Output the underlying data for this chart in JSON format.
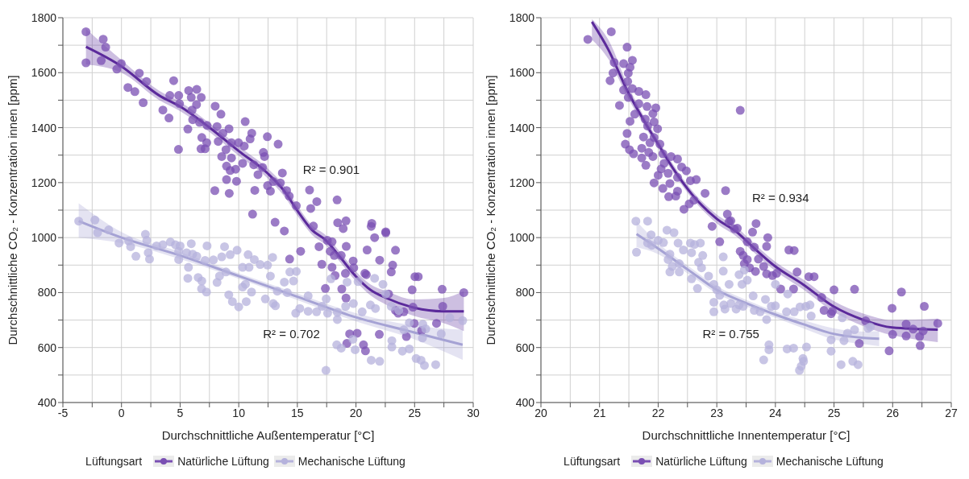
{
  "chart_data": [
    {
      "type": "scatter",
      "xlabel": "Durchschnittliche Außentemperatur [°C]",
      "ylabel": "Durchschnittliche CO₂ - Konzentration innen [ppm]",
      "legend_title": "Lüftungsart",
      "legend": "bottom",
      "grid": true,
      "xlim": [
        -5,
        30
      ],
      "ylim": [
        400,
        1800
      ],
      "xticks": [
        -5,
        {
          "value": -2.5,
          "label": null
        },
        0,
        {
          "value": 2.5,
          "label": null
        },
        5,
        {
          "value": 7.5,
          "label": null
        },
        10,
        {
          "value": 12.5,
          "label": null
        },
        15,
        {
          "value": 17.5,
          "label": null
        },
        20,
        {
          "value": 22.5,
          "label": null
        },
        25,
        {
          "value": 27.5,
          "label": null
        },
        30
      ],
      "yticks": [
        400,
        {
          "value": 500,
          "label": null
        },
        600,
        {
          "value": 700,
          "label": null
        },
        800,
        {
          "value": 900,
          "label": null
        },
        1000,
        {
          "value": 1100,
          "label": null
        },
        1200,
        {
          "value": 1300,
          "label": null
        },
        1400,
        {
          "value": 1500,
          "label": null
        },
        1600,
        {
          "value": 1700,
          "label": null
        },
        1800
      ],
      "annotations": [
        "R² = 0.901",
        "R² = 0.702"
      ],
      "series": [
        {
          "name": "Natürliche Lüftung",
          "marker": "circle",
          "color": "#7a4fb3",
          "x": [
            -3.03,
            -3.03,
            -1.56,
            -1.35,
            -1.73,
            -0.4,
            -0.02,
            1.52,
            2.13,
            0.55,
            1.14,
            1.85,
            4.45,
            3.53,
            4.05,
            4.12,
            4.88,
            5.73,
            6.42,
            6.8,
            5.95,
            4.95,
            6.02,
            6.4,
            5.66,
            6.07,
            6.66,
            7.3,
            7.99,
            8.48,
            8.15,
            4.86,
            6.85,
            7.27,
            6.78,
            7.13,
            9.17,
            8.65,
            10.55,
            11.11,
            10.97,
            12.44,
            13.36,
            8.25,
            9.38,
            9.98,
            10.47,
            8.91,
            8.55,
            9.38,
            12.1,
            12.2,
            8.96,
            9.27,
            9.74,
            10.33,
            11.28,
            12.04,
            8.96,
            9.81,
            11.64,
            13.72,
            12.94,
            13.55,
            7.96,
            9.19,
            11.37,
            12.46,
            12.7,
            14.08,
            14.31,
            14.91,
            16.04,
            16.14,
            16.66,
            18.39,
            11.18,
            13.1,
            13.89,
            16.37,
            18.44,
            19.15,
            18.91,
            21.35,
            21.3,
            22.54,
            14.34,
            15.28,
            16.85,
            17.09,
            17.39,
            17.56,
            17.96,
            17.8,
            18.15,
            18.74,
            17.96,
            18.22,
            18.79,
            19.17,
            19.15,
            19.1,
            19.76,
            19.81,
            20.76,
            20.95,
            20.88,
            21.59,
            22.54,
            22.02,
            23.37,
            23.13,
            23.01,
            22.78,
            23.37,
            23.6,
            24.08,
            24.79,
            25.03,
            25.31,
            24.86,
            24.97,
            24.3,
            25.6,
            26.87,
            27.35,
            27.4,
            29.2,
            19.46,
            20.1,
            21.99,
            19.22,
            20.64,
            20.81
          ],
          "values": [
            1749,
            1636,
            1722,
            1693,
            1644,
            1613,
            1633,
            1598,
            1568,
            1546,
            1531,
            1491,
            1571,
            1464,
            1435,
            1517,
            1517,
            1535,
            1539,
            1510,
            1510,
            1487,
            1464,
            1484,
            1395,
            1429,
            1419,
            1408,
            1478,
            1449,
            1404,
            1321,
            1364,
            1345,
            1323,
            1323,
            1396,
            1380,
            1422,
            1380,
            1359,
            1367,
            1340,
            1350,
            1345,
            1345,
            1333,
            1320,
            1295,
            1290,
            1310,
            1295,
            1260,
            1244,
            1249,
            1270,
            1265,
            1255,
            1211,
            1205,
            1229,
            1235,
            1204,
            1199,
            1171,
            1161,
            1172,
            1189,
            1169,
            1171,
            1151,
            1116,
            1173,
            1106,
            1131,
            1137,
            1085,
            1056,
            1024,
            1042,
            1054,
            1061,
            1033,
            1052,
            1041,
            1021,
            922,
            950,
            967,
            903,
            815,
            990,
            985,
            950,
            935,
            935,
            892,
            862,
            813,
            968,
            780,
            870,
            915,
            890,
            870,
            955,
            865,
            1000,
            1017,
            918,
            954,
            900,
            875,
            795,
            735,
            725,
            730,
            810,
            858,
            858,
            747,
            688,
            640,
            662,
            688,
            812,
            750,
            800,
            650,
            652,
            648,
            615,
            610,
            588
          ]
        },
        {
          "name": "Mechanische Lüftung",
          "marker": "circle",
          "color": "#b5b2dc",
          "x": [
            -3.65,
            -2.27,
            -2.04,
            -1.09,
            -0.21,
            0.62,
            0.78,
            1.23,
            2.04,
            2.16,
            2.28,
            2.39,
            2.99,
            3.53,
            4.17,
            4.6,
            5,
            4.88,
            4.88,
            5.71,
            5.95,
            5.55,
            6.07,
            6.42,
            5.66,
            6.54,
            6.85,
            6.83,
            7.25,
            7.3,
            7.13,
            7.84,
            8.15,
            8.36,
            8.79,
            8.55,
            9.27,
            8.91,
            9.15,
            9.46,
            10,
            9.86,
            10.33,
            10.8,
            10.88,
            11.33,
            10.64,
            11.09,
            10.57,
            10.33,
            11.83,
            12.46,
            12.89,
            12.7,
            12.27,
            12.94,
            13.13,
            13.29,
            13.89,
            14.36,
            14.91,
            14.67,
            14.13,
            14.86,
            15.21,
            15.92,
            15.92,
            16.64,
            17.11,
            17.46,
            17.58,
            18.41,
            18.41,
            17.87,
            19.24,
            19.12,
            19.78,
            20.18,
            20.53,
            21.23,
            21.66,
            21.59,
            22.3,
            22.54,
            23.01,
            23.65,
            24.08,
            24.55,
            25.7,
            25.95,
            25.67,
            28,
            29.1,
            27.27,
            23.06,
            18.36,
            18.74,
            19.74,
            19.93,
            23.06,
            23.96,
            24.55,
            21.3,
            22.02,
            25.13,
            25.55,
            25.84,
            26.8,
            17.44
          ],
          "values": [
            1060,
            1064,
            1018,
            1028,
            980,
            988,
            967,
            932,
            1012,
            990,
            945,
            922,
            970,
            974,
            984,
            974,
            970,
            950,
            920,
            892,
            978,
            945,
            940,
            932,
            852,
            855,
            842,
            814,
            802,
            970,
            917,
            919,
            837,
            860,
            967,
            930,
            938,
            875,
            792,
            767,
            748,
            954,
            892,
            938,
            892,
            920,
            767,
            802,
            830,
            820,
            902,
            900,
            928,
            860,
            777,
            760,
            752,
            805,
            838,
            875,
            877,
            842,
            800,
            725,
            742,
            732,
            788,
            730,
            750,
            777,
            725,
            702,
            728,
            850,
            838,
            750,
            760,
            840,
            730,
            755,
            742,
            852,
            830,
            795,
            750,
            735,
            665,
            690,
            685,
            668,
            635,
            708,
            698,
            650,
            625,
            610,
            598,
            630,
            592,
            602,
            587,
            595,
            554,
            550,
            560,
            554,
            535,
            538,
            517
          ]
        },
        {
          "type": "line",
          "marker": "none",
          "color": "#5b2a9b",
          "x": [
            -3.03,
            0,
            3.22,
            5,
            7.49,
            10,
            12.46,
            13.89,
            15,
            16.26,
            17.44,
            18.63,
            19.97,
            21.23,
            22.6,
            24.97,
            27.4,
            29.2
          ],
          "values": [
            1694,
            1623,
            1517,
            1477,
            1401,
            1315,
            1234,
            1169,
            1098,
            1027,
            990,
            930,
            860,
            810,
            780,
            745,
            732,
            732
          ],
          "lower": [
            1630,
            1600,
            1500,
            1460,
            1385,
            1298,
            1216,
            1150,
            1080,
            1010,
            972,
            912,
            842,
            790,
            755,
            715,
            690,
            660
          ],
          "upper": [
            1760,
            1646,
            1534,
            1494,
            1417,
            1332,
            1252,
            1188,
            1116,
            1044,
            1008,
            948,
            878,
            830,
            805,
            775,
            780,
            805
          ]
        },
        {
          "type": "line",
          "marker": "none",
          "color": "#a5a2d4",
          "x": [
            -3.65,
            0,
            5,
            10,
            15,
            20,
            24.97,
            29.1
          ],
          "values": [
            1060,
            1000,
            935,
            860,
            785,
            710,
            655,
            610
          ],
          "lower": [
            1000,
            980,
            922,
            850,
            773,
            695,
            630,
            555
          ],
          "upper": [
            1125,
            1020,
            948,
            870,
            797,
            725,
            680,
            665
          ]
        }
      ]
    },
    {
      "type": "scatter",
      "xlabel": "Durchschnittliche Innentemperatur [°C]",
      "ylabel": "Durchschnittliche CO₂ - Konzentration innen [ppm]",
      "legend_title": "Lüftungsart",
      "legend": "bottom",
      "grid": true,
      "xlim": [
        20,
        27
      ],
      "ylim": [
        400,
        1800
      ],
      "xticks": [
        20,
        {
          "value": 20.5,
          "label": null
        },
        21,
        {
          "value": 21.5,
          "label": null
        },
        22,
        {
          "value": 22.5,
          "label": null
        },
        23,
        {
          "value": 23.5,
          "label": null
        },
        24,
        {
          "value": 24.5,
          "label": null
        },
        25,
        {
          "value": 25.5,
          "label": null
        },
        26,
        {
          "value": 26.5,
          "label": null
        },
        27
      ],
      "yticks": [
        400,
        {
          "value": 500,
          "label": null
        },
        600,
        {
          "value": 700,
          "label": null
        },
        800,
        {
          "value": 900,
          "label": null
        },
        1000,
        {
          "value": 1100,
          "label": null
        },
        1200,
        {
          "value": 1300,
          "label": null
        },
        1400,
        {
          "value": 1500,
          "label": null
        },
        1600,
        {
          "value": 1700,
          "label": null
        },
        1800
      ],
      "annotations": [
        "R² = 0.934",
        "R² = 0.755"
      ],
      "series": [
        {
          "name": "Natürliche Lüftung",
          "marker": "circle",
          "color": "#7a4fb3",
          "x": [
            20.8,
            21.2,
            21.47,
            21.25,
            21.41,
            21.56,
            21.52,
            21.49,
            21.23,
            21.18,
            21.48,
            21.56,
            21.41,
            21.67,
            21.79,
            21.49,
            21.34,
            21.67,
            21.81,
            21.96,
            21.6,
            21.91,
            21.78,
            21.52,
            21.93,
            21.99,
            21.82,
            21.47,
            21.75,
            21.93,
            21.44,
            21.86,
            22.03,
            21.51,
            21.58,
            21.72,
            21.84,
            21.72,
            21.91,
            21.79,
            22.08,
            22.22,
            22.33,
            22.1,
            22.05,
            22.17,
            22,
            22.4,
            22.48,
            22.33,
            22.55,
            22.65,
            21.93,
            22.08,
            22.2,
            22.33,
            22.18,
            22.3,
            22.8,
            23.15,
            23.4,
            22.53,
            22.44,
            22.61,
            23.18,
            23.24,
            23.67,
            22.92,
            23.61,
            23.3,
            23.05,
            23.21,
            23.35,
            23.4,
            23.45,
            23.52,
            23.47,
            23.56,
            23.66,
            23.87,
            23.85,
            23.52,
            23.64,
            23.71,
            23.8,
            23.85,
            23.95,
            24.02,
            24.09,
            24.23,
            24.32,
            24.31,
            24.37,
            24.57,
            24.66,
            24.79,
            24.83,
            25,
            24.95,
            24.97,
            25.35,
            25.54,
            25.99,
            26.15,
            25.94,
            26,
            26.23,
            26.23,
            26.35,
            26.46,
            26.47,
            26.54,
            26.52,
            26.77,
            25.43
          ],
          "values": [
            1721,
            1749,
            1693,
            1637,
            1633,
            1645,
            1620,
            1598,
            1599,
            1571,
            1568,
            1542,
            1537,
            1532,
            1520,
            1510,
            1481,
            1487,
            1477,
            1472,
            1449,
            1451,
            1431,
            1423,
            1421,
            1396,
            1406,
            1379,
            1366,
            1364,
            1340,
            1345,
            1340,
            1320,
            1305,
            1325,
            1310,
            1290,
            1295,
            1263,
            1305,
            1295,
            1286,
            1270,
            1250,
            1234,
            1227,
            1257,
            1243,
            1219,
            1207,
            1211,
            1199,
            1179,
            1197,
            1169,
            1149,
            1151,
            1161,
            1171,
            1463,
            1123,
            1103,
            1136,
            1085,
            1061,
            1051,
            1041,
            1020,
            1032,
            985,
            1058,
            1034,
            950,
            935,
            920,
            905,
            890,
            877,
            1000,
            968,
            985,
            965,
            922,
            895,
            868,
            862,
            870,
            813,
            955,
            953,
            813,
            875,
            858,
            858,
            782,
            735,
            810,
            723,
            732,
            812,
            697,
            743,
            802,
            588,
            648,
            685,
            642,
            667,
            640,
            607,
            750,
            660,
            688,
            615
          ]
        },
        {
          "name": "Mechanische Lüftung",
          "marker": "circle",
          "color": "#b5b2dc",
          "x": [
            21.62,
            21.82,
            21.63,
            21.88,
            21.82,
            21.89,
            22.09,
            22.15,
            22.27,
            22,
            22.34,
            22.43,
            22.2,
            22.17,
            22.24,
            22.2,
            22.36,
            22.36,
            22.55,
            22.62,
            22.72,
            22.57,
            22.76,
            22.69,
            22.74,
            23.11,
            23.11,
            22.57,
            22.67,
            22.86,
            22.95,
            23,
            23.05,
            22.95,
            22.95,
            23.12,
            23.14,
            23.21,
            23.24,
            23.33,
            23.38,
            23.43,
            23.47,
            23.52,
            23.38,
            23.45,
            23.62,
            23.64,
            23.74,
            23.83,
            23.85,
            23.93,
            24,
            24,
            24.21,
            24.19,
            24.32,
            24.42,
            24.52,
            24.59,
            24.61,
            25.14,
            25.23,
            25.35,
            25.58,
            25.62,
            24.95,
            25.17,
            23.89,
            23.89,
            24.2,
            24.31,
            24.53,
            24.95,
            23.8,
            24.47,
            24.48,
            24.44,
            24.41,
            25.12,
            25.32,
            25.41
          ],
          "values": [
            1060,
            1060,
            947,
            1010,
            980,
            972,
            982,
            1027,
            1018,
            990,
            980,
            955,
            940,
            920,
            895,
            875,
            875,
            905,
            980,
            975,
            980,
            945,
            935,
            910,
            890,
            930,
            878,
            850,
            815,
            860,
            830,
            810,
            790,
            765,
            730,
            755,
            740,
            830,
            760,
            740,
            865,
            830,
            882,
            845,
            755,
            750,
            788,
            735,
            730,
            775,
            702,
            750,
            752,
            830,
            795,
            730,
            730,
            748,
            750,
            755,
            715,
            708,
            652,
            665,
            670,
            675,
            628,
            625,
            610,
            592,
            595,
            598,
            602,
            587,
            555,
            560,
            550,
            532,
            517,
            538,
            550,
            538
          ]
        },
        {
          "type": "line",
          "marker": "none",
          "color": "#5b2a9b",
          "x": [
            20.87,
            21.15,
            21.48,
            21.77,
            22,
            22.29,
            22.57,
            23,
            23.36,
            23.52,
            24,
            24.47,
            24.99,
            25.51,
            25.99,
            26.77
          ],
          "values": [
            1785,
            1684,
            1532,
            1421,
            1340,
            1240,
            1159,
            1068,
            1017,
            985,
            895,
            830,
            750,
            700,
            673,
            665
          ],
          "lower": [
            1720,
            1650,
            1510,
            1405,
            1325,
            1225,
            1145,
            1052,
            1000,
            968,
            878,
            812,
            730,
            677,
            645,
            620
          ],
          "upper": [
            1795,
            1720,
            1555,
            1437,
            1355,
            1255,
            1173,
            1084,
            1034,
            1002,
            912,
            848,
            770,
            723,
            700,
            705
          ]
        },
        {
          "type": "line",
          "marker": "none",
          "color": "#a5a2d4",
          "x": [
            21.63,
            22,
            22.53,
            23,
            23.52,
            24,
            24.47,
            24.99,
            25.51,
            25.77
          ],
          "values": [
            1013,
            960,
            880,
            810,
            760,
            720,
            685,
            650,
            635,
            632
          ],
          "lower": [
            965,
            940,
            866,
            797,
            748,
            708,
            670,
            630,
            612,
            605
          ],
          "upper": [
            1060,
            980,
            894,
            823,
            772,
            732,
            700,
            670,
            658,
            660
          ]
        }
      ]
    }
  ]
}
